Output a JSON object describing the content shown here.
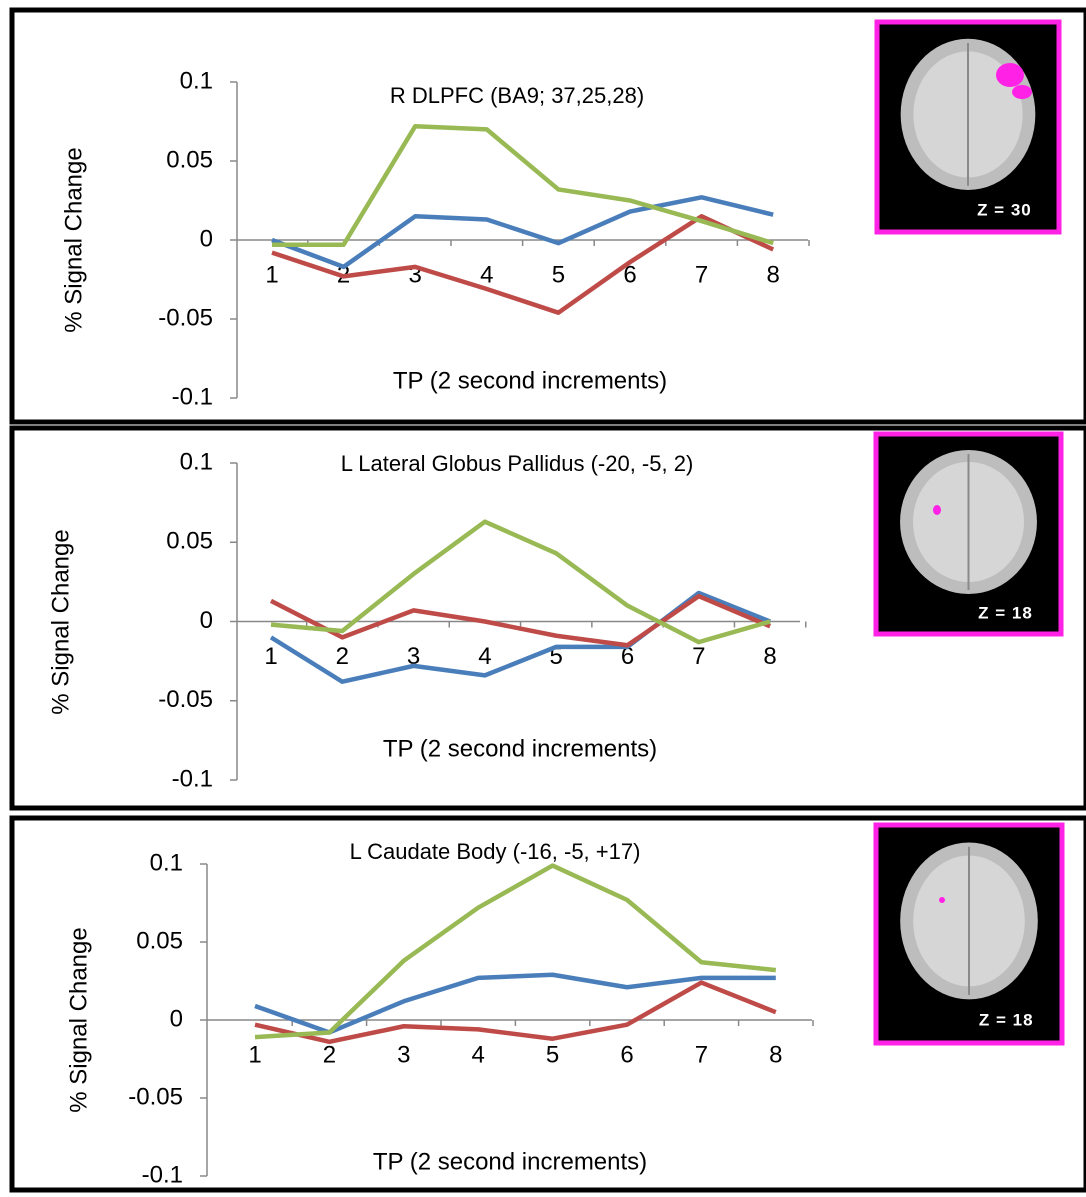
{
  "chart_data": [
    {
      "type": "line",
      "title": "R DLPFC (BA9; 37,25,28)",
      "x_label": "TP (2 second increments)",
      "y_label": "% Signal Change",
      "annotation": "Z = 30",
      "categories": [
        "1",
        "2",
        "3",
        "4",
        "5",
        "6",
        "7",
        "8"
      ],
      "ylim": [
        -0.1,
        0.1
      ],
      "yticks": [
        -0.1,
        -0.05,
        0,
        0.05,
        0.1
      ],
      "series": [
        {
          "color": "#4a7ebb",
          "values": [
            0,
            -0.017,
            0.015,
            0.013,
            -0.002,
            0.018,
            0.027,
            0.016
          ]
        },
        {
          "color": "#be4b48",
          "values": [
            -0.008,
            -0.023,
            -0.017,
            -0.031,
            -0.046,
            -0.014,
            0.015,
            -0.006
          ]
        },
        {
          "color": "#98b954",
          "values": [
            -0.003,
            -0.003,
            0.072,
            0.07,
            0.032,
            0.025,
            0.012,
            -0.002
          ]
        }
      ]
    },
    {
      "type": "line",
      "title": "L Lateral Globus Pallidus (-20, -5, 2)",
      "x_label": "TP (2 second increments)",
      "y_label": "% Signal Change",
      "annotation": "Z = 18",
      "categories": [
        "1",
        "2",
        "3",
        "4",
        "5",
        "6",
        "7",
        "8"
      ],
      "ylim": [
        -0.1,
        0.1
      ],
      "yticks": [
        -0.1,
        -0.05,
        0,
        0.05,
        0.1
      ],
      "series": [
        {
          "color": "#4a7ebb",
          "values": [
            -0.01,
            -0.038,
            -0.028,
            -0.034,
            -0.016,
            -0.016,
            0.018,
            0
          ]
        },
        {
          "color": "#be4b48",
          "values": [
            0.013,
            -0.01,
            0.007,
            0,
            -0.009,
            -0.015,
            0.016,
            -0.003
          ]
        },
        {
          "color": "#98b954",
          "values": [
            -0.002,
            -0.006,
            0.03,
            0.063,
            0.043,
            0.01,
            -0.013,
            0
          ]
        }
      ]
    },
    {
      "type": "line",
      "title": "L Caudate Body (-16, -5, +17)",
      "x_label": "TP (2 second increments)",
      "y_label": "% Signal Change",
      "annotation": "Z = 18",
      "categories": [
        "1",
        "2",
        "3",
        "4",
        "5",
        "6",
        "7",
        "8"
      ],
      "ylim": [
        -0.1,
        0.1
      ],
      "yticks": [
        -0.1,
        -0.05,
        0,
        0.05,
        0.1
      ],
      "series": [
        {
          "color": "#4a7ebb",
          "values": [
            0.009,
            -0.008,
            0.012,
            0.027,
            0.029,
            0.021,
            0.027,
            0.027
          ]
        },
        {
          "color": "#be4b48",
          "values": [
            -0.003,
            -0.014,
            -0.004,
            -0.006,
            -0.012,
            -0.003,
            0.024,
            0.005
          ]
        },
        {
          "color": "#98b954",
          "values": [
            -0.011,
            -0.008,
            0.038,
            0.072,
            0.099,
            0.077,
            0.037,
            0.032
          ]
        }
      ]
    }
  ]
}
